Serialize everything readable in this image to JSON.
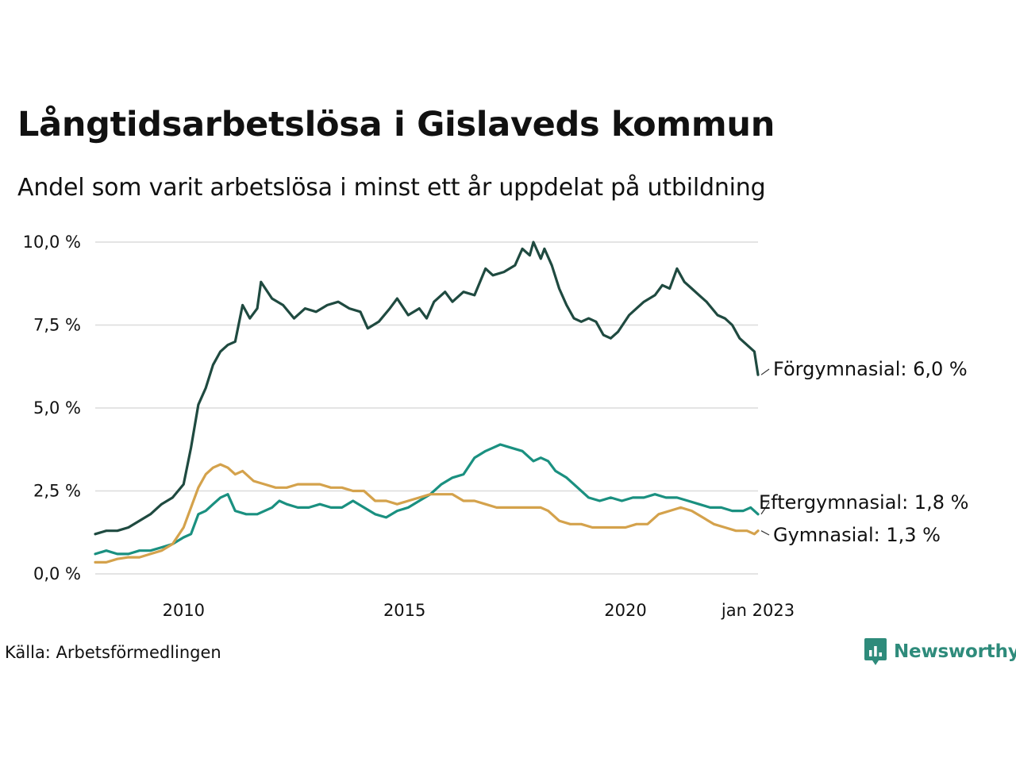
{
  "title": "Långtidsarbetslösa i Gislaveds kommun",
  "subtitle": "Andel som varit arbetslösa i minst ett år uppdelat på utbildning",
  "source": "Källa: Arbetsförmedlingen",
  "logo": {
    "text": "Newsworthy",
    "icon": "newsworthy-chat-bars-icon",
    "color": "#2e8b7b"
  },
  "chart_data": {
    "type": "line",
    "x_range": [
      "2008-01",
      "2023-01"
    ],
    "ylim": [
      0,
      10
    ],
    "y_ticks": [
      0,
      2.5,
      5,
      7.5,
      10
    ],
    "y_tick_labels": [
      "0,0 %",
      "2,5 %",
      "5,0 %",
      "7,5 %",
      "10,0 %"
    ],
    "x_ticks": [
      {
        "date": "2010-01",
        "label": "2010"
      },
      {
        "date": "2015-01",
        "label": "2015"
      },
      {
        "date": "2020-01",
        "label": "2020"
      },
      {
        "date": "2023-01",
        "label": "jan 2023"
      }
    ],
    "grid": "horizontal",
    "legend": "direct labels at line ends, right",
    "series": [
      {
        "name": "Förgymnasial",
        "end_label": "Förgymnasial: 6,0 %",
        "color": "#1f4a40",
        "points": [
          [
            "2008-01",
            1.2
          ],
          [
            "2008-04",
            1.3
          ],
          [
            "2008-07",
            1.3
          ],
          [
            "2008-10",
            1.4
          ],
          [
            "2009-01",
            1.6
          ],
          [
            "2009-04",
            1.8
          ],
          [
            "2009-07",
            2.1
          ],
          [
            "2009-10",
            2.3
          ],
          [
            "2010-01",
            2.7
          ],
          [
            "2010-03",
            3.8
          ],
          [
            "2010-05",
            5.1
          ],
          [
            "2010-07",
            5.6
          ],
          [
            "2010-09",
            6.3
          ],
          [
            "2010-11",
            6.7
          ],
          [
            "2011-01",
            6.9
          ],
          [
            "2011-03",
            7.0
          ],
          [
            "2011-05",
            8.1
          ],
          [
            "2011-07",
            7.7
          ],
          [
            "2011-09",
            8.0
          ],
          [
            "2011-10",
            8.8
          ],
          [
            "2012-01",
            8.3
          ],
          [
            "2012-04",
            8.1
          ],
          [
            "2012-07",
            7.7
          ],
          [
            "2012-10",
            8.0
          ],
          [
            "2013-01",
            7.9
          ],
          [
            "2013-04",
            8.1
          ],
          [
            "2013-07",
            8.2
          ],
          [
            "2013-10",
            8.0
          ],
          [
            "2014-01",
            7.9
          ],
          [
            "2014-03",
            7.4
          ],
          [
            "2014-06",
            7.6
          ],
          [
            "2014-09",
            8.0
          ],
          [
            "2014-11",
            8.3
          ],
          [
            "2015-02",
            7.8
          ],
          [
            "2015-05",
            8.0
          ],
          [
            "2015-07",
            7.7
          ],
          [
            "2015-09",
            8.2
          ],
          [
            "2015-12",
            8.5
          ],
          [
            "2016-02",
            8.2
          ],
          [
            "2016-05",
            8.5
          ],
          [
            "2016-08",
            8.4
          ],
          [
            "2016-11",
            9.2
          ],
          [
            "2017-01",
            9.0
          ],
          [
            "2017-04",
            9.1
          ],
          [
            "2017-07",
            9.3
          ],
          [
            "2017-09",
            9.8
          ],
          [
            "2017-11",
            9.6
          ],
          [
            "2017-12",
            10.0
          ],
          [
            "2018-02",
            9.5
          ],
          [
            "2018-03",
            9.8
          ],
          [
            "2018-05",
            9.3
          ],
          [
            "2018-07",
            8.6
          ],
          [
            "2018-09",
            8.1
          ],
          [
            "2018-11",
            7.7
          ],
          [
            "2019-01",
            7.6
          ],
          [
            "2019-03",
            7.7
          ],
          [
            "2019-05",
            7.6
          ],
          [
            "2019-07",
            7.2
          ],
          [
            "2019-09",
            7.1
          ],
          [
            "2019-11",
            7.3
          ],
          [
            "2020-02",
            7.8
          ],
          [
            "2020-04",
            8.0
          ],
          [
            "2020-06",
            8.2
          ],
          [
            "2020-09",
            8.4
          ],
          [
            "2020-11",
            8.7
          ],
          [
            "2021-01",
            8.6
          ],
          [
            "2021-03",
            9.2
          ],
          [
            "2021-05",
            8.8
          ],
          [
            "2021-07",
            8.6
          ],
          [
            "2021-09",
            8.4
          ],
          [
            "2021-11",
            8.2
          ],
          [
            "2022-02",
            7.8
          ],
          [
            "2022-04",
            7.7
          ],
          [
            "2022-06",
            7.5
          ],
          [
            "2022-08",
            7.1
          ],
          [
            "2022-10",
            6.9
          ],
          [
            "2022-12",
            6.7
          ],
          [
            "2023-01",
            6.0
          ]
        ]
      },
      {
        "name": "Eftergymnasial",
        "end_label": "Eftergymnasial: 1,8 %",
        "color": "#1a9080",
        "points": [
          [
            "2008-01",
            0.6
          ],
          [
            "2008-04",
            0.7
          ],
          [
            "2008-07",
            0.6
          ],
          [
            "2008-10",
            0.6
          ],
          [
            "2009-01",
            0.7
          ],
          [
            "2009-04",
            0.7
          ],
          [
            "2009-07",
            0.8
          ],
          [
            "2009-10",
            0.9
          ],
          [
            "2010-01",
            1.1
          ],
          [
            "2010-03",
            1.2
          ],
          [
            "2010-05",
            1.8
          ],
          [
            "2010-07",
            1.9
          ],
          [
            "2010-09",
            2.1
          ],
          [
            "2010-11",
            2.3
          ],
          [
            "2011-01",
            2.4
          ],
          [
            "2011-03",
            1.9
          ],
          [
            "2011-06",
            1.8
          ],
          [
            "2011-09",
            1.8
          ],
          [
            "2012-01",
            2.0
          ],
          [
            "2012-03",
            2.2
          ],
          [
            "2012-05",
            2.1
          ],
          [
            "2012-08",
            2.0
          ],
          [
            "2012-11",
            2.0
          ],
          [
            "2013-02",
            2.1
          ],
          [
            "2013-05",
            2.0
          ],
          [
            "2013-08",
            2.0
          ],
          [
            "2013-11",
            2.2
          ],
          [
            "2014-02",
            2.0
          ],
          [
            "2014-05",
            1.8
          ],
          [
            "2014-08",
            1.7
          ],
          [
            "2014-11",
            1.9
          ],
          [
            "2015-02",
            2.0
          ],
          [
            "2015-05",
            2.2
          ],
          [
            "2015-08",
            2.4
          ],
          [
            "2015-11",
            2.7
          ],
          [
            "2016-02",
            2.9
          ],
          [
            "2016-05",
            3.0
          ],
          [
            "2016-08",
            3.5
          ],
          [
            "2016-11",
            3.7
          ],
          [
            "2017-01",
            3.8
          ],
          [
            "2017-03",
            3.9
          ],
          [
            "2017-06",
            3.8
          ],
          [
            "2017-09",
            3.7
          ],
          [
            "2017-12",
            3.4
          ],
          [
            "2018-02",
            3.5
          ],
          [
            "2018-04",
            3.4
          ],
          [
            "2018-06",
            3.1
          ],
          [
            "2018-09",
            2.9
          ],
          [
            "2018-12",
            2.6
          ],
          [
            "2019-03",
            2.3
          ],
          [
            "2019-06",
            2.2
          ],
          [
            "2019-09",
            2.3
          ],
          [
            "2019-12",
            2.2
          ],
          [
            "2020-03",
            2.3
          ],
          [
            "2020-06",
            2.3
          ],
          [
            "2020-09",
            2.4
          ],
          [
            "2020-12",
            2.3
          ],
          [
            "2021-03",
            2.3
          ],
          [
            "2021-06",
            2.2
          ],
          [
            "2021-09",
            2.1
          ],
          [
            "2021-12",
            2.0
          ],
          [
            "2022-03",
            2.0
          ],
          [
            "2022-06",
            1.9
          ],
          [
            "2022-09",
            1.9
          ],
          [
            "2022-11",
            2.0
          ],
          [
            "2023-01",
            1.8
          ]
        ]
      },
      {
        "name": "Gymnasial",
        "end_label": "Gymnasial: 1,3 %",
        "color": "#d4a24c",
        "points": [
          [
            "2008-01",
            0.35
          ],
          [
            "2008-04",
            0.35
          ],
          [
            "2008-07",
            0.45
          ],
          [
            "2008-10",
            0.5
          ],
          [
            "2009-01",
            0.5
          ],
          [
            "2009-04",
            0.6
          ],
          [
            "2009-07",
            0.7
          ],
          [
            "2009-10",
            0.9
          ],
          [
            "2010-01",
            1.4
          ],
          [
            "2010-03",
            2.0
          ],
          [
            "2010-05",
            2.6
          ],
          [
            "2010-07",
            3.0
          ],
          [
            "2010-09",
            3.2
          ],
          [
            "2010-11",
            3.3
          ],
          [
            "2011-01",
            3.2
          ],
          [
            "2011-03",
            3.0
          ],
          [
            "2011-05",
            3.1
          ],
          [
            "2011-08",
            2.8
          ],
          [
            "2011-11",
            2.7
          ],
          [
            "2012-02",
            2.6
          ],
          [
            "2012-05",
            2.6
          ],
          [
            "2012-08",
            2.7
          ],
          [
            "2012-11",
            2.7
          ],
          [
            "2013-02",
            2.7
          ],
          [
            "2013-05",
            2.6
          ],
          [
            "2013-08",
            2.6
          ],
          [
            "2013-11",
            2.5
          ],
          [
            "2014-02",
            2.5
          ],
          [
            "2014-05",
            2.2
          ],
          [
            "2014-08",
            2.2
          ],
          [
            "2014-11",
            2.1
          ],
          [
            "2015-02",
            2.2
          ],
          [
            "2015-05",
            2.3
          ],
          [
            "2015-08",
            2.4
          ],
          [
            "2015-11",
            2.4
          ],
          [
            "2016-02",
            2.4
          ],
          [
            "2016-05",
            2.2
          ],
          [
            "2016-08",
            2.2
          ],
          [
            "2016-11",
            2.1
          ],
          [
            "2017-02",
            2.0
          ],
          [
            "2017-05",
            2.0
          ],
          [
            "2017-08",
            2.0
          ],
          [
            "2017-11",
            2.0
          ],
          [
            "2018-02",
            2.0
          ],
          [
            "2018-04",
            1.9
          ],
          [
            "2018-07",
            1.6
          ],
          [
            "2018-10",
            1.5
          ],
          [
            "2019-01",
            1.5
          ],
          [
            "2019-04",
            1.4
          ],
          [
            "2019-07",
            1.4
          ],
          [
            "2019-10",
            1.4
          ],
          [
            "2020-01",
            1.4
          ],
          [
            "2020-04",
            1.5
          ],
          [
            "2020-07",
            1.5
          ],
          [
            "2020-10",
            1.8
          ],
          [
            "2021-01",
            1.9
          ],
          [
            "2021-04",
            2.0
          ],
          [
            "2021-07",
            1.9
          ],
          [
            "2021-10",
            1.7
          ],
          [
            "2022-01",
            1.5
          ],
          [
            "2022-04",
            1.4
          ],
          [
            "2022-07",
            1.3
          ],
          [
            "2022-10",
            1.3
          ],
          [
            "2022-12",
            1.2
          ],
          [
            "2023-01",
            1.3
          ]
        ]
      }
    ]
  }
}
